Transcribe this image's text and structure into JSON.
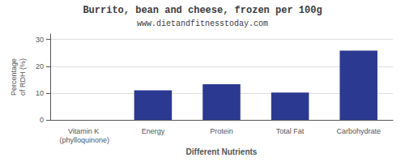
{
  "chart_data": {
    "type": "bar",
    "title": "Burrito, bean and cheese, frozen per 100g",
    "subtitle": "www.dietandfitnesstoday.com",
    "xlabel": "Different Nutrients",
    "ylabel": "Percentage\nof RDH (%)",
    "categories": [
      "Vitamin K (phylloquinone)",
      "Energy",
      "Protein",
      "Total Fat",
      "Carbohydrate"
    ],
    "values": [
      0,
      11,
      13.3,
      10.2,
      25.8
    ],
    "color": "#2b3990",
    "ylim": [
      0,
      32
    ],
    "yticks": [
      0,
      10,
      20,
      30
    ],
    "grid": true
  }
}
